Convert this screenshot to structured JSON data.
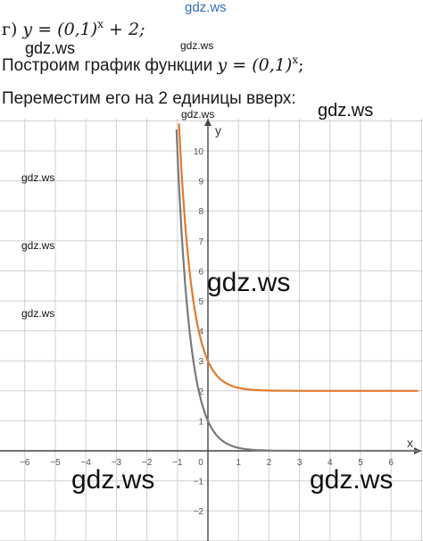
{
  "task": {
    "item_prefix": "г)",
    "equation": "y = (0,1)",
    "equation_power": "x",
    "equation_suffix": " + 2;",
    "line2_text": "Построим график функции ",
    "line2_math": "y = (0,1)",
    "line2_power": "x",
    "line2_end": ";",
    "line3_text": "Переместим его на 2 единицы вверх:"
  },
  "watermarks": [
    "gdz.ws",
    "gdz.ws",
    "gdz.ws",
    "gdz.ws",
    "gdz.ws",
    "gdz.ws",
    "gdz.ws",
    "gdz.ws",
    "gdz.ws",
    "gdz.ws",
    "gdz.ws"
  ],
  "colors": {
    "grid": "#d0d0d0",
    "axis": "#444444",
    "curve_base": "#7a7a7a",
    "curve_shifted": "#e07b2e"
  },
  "chart_data": {
    "type": "line",
    "xlabel": "x",
    "ylabel": "y",
    "xlim": [
      -6.6,
      6.9
    ],
    "ylim": [
      -2.5,
      10.9
    ],
    "x_ticks": [
      -6,
      -5,
      -4,
      -3,
      -2,
      -1,
      0,
      1,
      2,
      3,
      4,
      5,
      6
    ],
    "y_ticks": [
      -2,
      -1,
      1,
      2,
      3,
      4,
      5,
      6,
      7,
      8,
      9,
      10
    ],
    "grid": true,
    "series": [
      {
        "function": "y = (0,1)^x",
        "base": 0.1,
        "shift": 0,
        "x": [
          -1.05,
          -1,
          -0.5,
          0,
          0.5,
          1,
          2,
          3,
          6.9
        ],
        "values": [
          11.2,
          10,
          3.16,
          1,
          0.32,
          0.1,
          0.01,
          0.001,
          0
        ]
      },
      {
        "function": "y = (0,1)^x + 2",
        "base": 0.1,
        "shift": 2,
        "x": [
          -0.95,
          -0.5,
          0,
          0.5,
          1,
          2,
          3,
          6.9
        ],
        "values": [
          10.9,
          5.16,
          3,
          2.32,
          2.1,
          2.01,
          2.001,
          2
        ]
      }
    ]
  }
}
